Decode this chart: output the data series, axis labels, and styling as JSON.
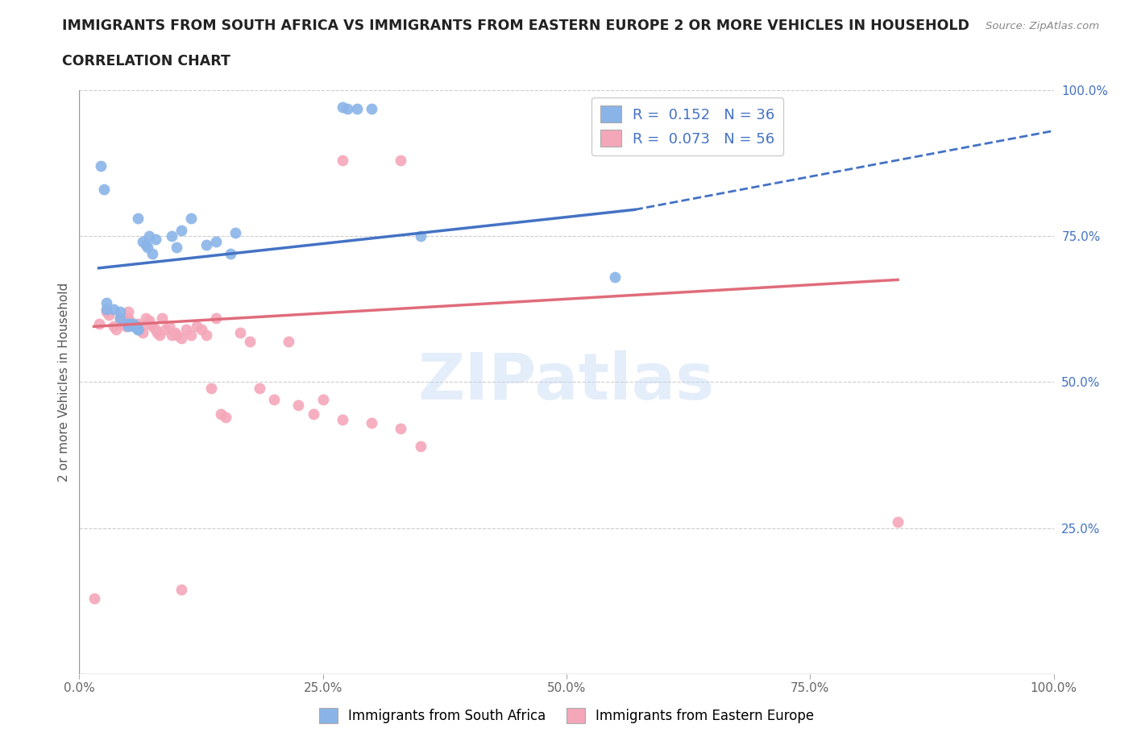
{
  "title_line1": "IMMIGRANTS FROM SOUTH AFRICA VS IMMIGRANTS FROM EASTERN EUROPE 2 OR MORE VEHICLES IN HOUSEHOLD",
  "title_line2": "CORRELATION CHART",
  "source_text": "Source: ZipAtlas.com",
  "ylabel": "2 or more Vehicles in Household",
  "xlim": [
    0.0,
    1.0
  ],
  "ylim": [
    0.0,
    1.0
  ],
  "xtick_labels": [
    "0.0%",
    "25.0%",
    "50.0%",
    "75.0%",
    "100.0%"
  ],
  "xtick_vals": [
    0.0,
    0.25,
    0.5,
    0.75,
    1.0
  ],
  "ytick_labels_right": [
    "100.0%",
    "75.0%",
    "50.0%",
    "25.0%"
  ],
  "ytick_vals_right": [
    1.0,
    0.75,
    0.5,
    0.25
  ],
  "watermark": "ZIPatlas",
  "color_blue": "#8ab4e8",
  "color_pink": "#f4a7b9",
  "color_blue_line": "#4472c4",
  "color_pink_line": "#e06c7b",
  "legend_label1": "Immigrants from South Africa",
  "legend_label2": "Immigrants from Eastern Europe",
  "blue_x": [
    0.028,
    0.028,
    0.035,
    0.042,
    0.042,
    0.05,
    0.05,
    0.05,
    0.055,
    0.055,
    0.058,
    0.06,
    0.065,
    0.068,
    0.07,
    0.072,
    0.075,
    0.078,
    0.095,
    0.1,
    0.105,
    0.115,
    0.13,
    0.14,
    0.155,
    0.16,
    0.27,
    0.275,
    0.285,
    0.3,
    0.35,
    0.55,
    0.022,
    0.025,
    0.06,
    0.06
  ],
  "blue_y": [
    0.635,
    0.625,
    0.625,
    0.62,
    0.61,
    0.6,
    0.595,
    0.6,
    0.6,
    0.595,
    0.595,
    0.59,
    0.74,
    0.735,
    0.73,
    0.75,
    0.72,
    0.745,
    0.75,
    0.73,
    0.76,
    0.78,
    0.735,
    0.74,
    0.72,
    0.755,
    0.97,
    0.968,
    0.968,
    0.968,
    0.75,
    0.68,
    0.87,
    0.83,
    0.78,
    0.59
  ],
  "pink_x": [
    0.015,
    0.02,
    0.028,
    0.03,
    0.035,
    0.038,
    0.042,
    0.045,
    0.048,
    0.05,
    0.05,
    0.05,
    0.055,
    0.058,
    0.06,
    0.062,
    0.065,
    0.068,
    0.07,
    0.072,
    0.075,
    0.078,
    0.08,
    0.082,
    0.085,
    0.088,
    0.092,
    0.095,
    0.098,
    0.1,
    0.105,
    0.11,
    0.115,
    0.12,
    0.125,
    0.13,
    0.135,
    0.14,
    0.145,
    0.15,
    0.165,
    0.175,
    0.185,
    0.2,
    0.215,
    0.225,
    0.24,
    0.25,
    0.27,
    0.3,
    0.33,
    0.35,
    0.27,
    0.33,
    0.84,
    0.105
  ],
  "pink_y": [
    0.13,
    0.6,
    0.62,
    0.615,
    0.595,
    0.59,
    0.61,
    0.6,
    0.595,
    0.62,
    0.61,
    0.605,
    0.6,
    0.595,
    0.6,
    0.59,
    0.585,
    0.61,
    0.6,
    0.605,
    0.595,
    0.59,
    0.585,
    0.58,
    0.61,
    0.59,
    0.595,
    0.58,
    0.585,
    0.58,
    0.575,
    0.59,
    0.58,
    0.595,
    0.59,
    0.58,
    0.49,
    0.61,
    0.445,
    0.44,
    0.585,
    0.57,
    0.49,
    0.47,
    0.57,
    0.46,
    0.445,
    0.47,
    0.435,
    0.43,
    0.42,
    0.39,
    0.88,
    0.88,
    0.26,
    0.145
  ]
}
